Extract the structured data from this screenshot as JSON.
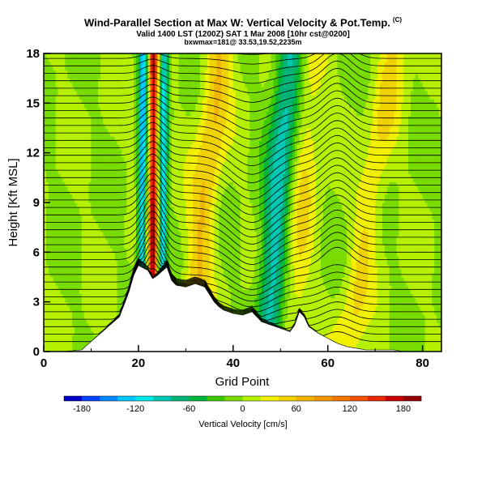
{
  "header": {
    "title": "Wind-Parallel Section at Max W: Vertical Velocity & Pot.Temp.",
    "title_tag": "(C)",
    "subtitle": "Valid 1400 LST (1200Z) SAT 1 Mar 2008 [10hr cst@0200]",
    "subtitle2": "bxwmax=181@ 33.53,19.52,2235m"
  },
  "chart_data": {
    "type": "heatmap",
    "x": {
      "label": "Grid Point",
      "lim": [
        0,
        84
      ],
      "ticks": [
        0,
        20,
        40,
        60,
        80
      ],
      "tick_labels": [
        "0",
        "20",
        "40",
        "60",
        "80"
      ]
    },
    "y": {
      "label": "Height [Kft MSL]",
      "lim": [
        0,
        18
      ],
      "ticks": [
        0,
        3,
        6,
        9,
        12,
        15,
        18
      ],
      "tick_labels": [
        "0",
        "3",
        "6",
        "9",
        "12",
        "15",
        "18"
      ]
    },
    "colorbar": {
      "label": "Vertical Velocity [cm/s]",
      "min": -200,
      "max": 200,
      "step": 20,
      "tick_values": [
        -180,
        -120,
        -60,
        0,
        60,
        120,
        180
      ],
      "tick_labels": [
        "-180",
        "-120",
        "-60",
        "0",
        "60",
        "120",
        "180"
      ],
      "colors": [
        "#0000c8",
        "#0044ff",
        "#0088ff",
        "#00c8ff",
        "#00e8e8",
        "#00c8b4",
        "#00b478",
        "#00b43c",
        "#3cc800",
        "#78dc00",
        "#b4f000",
        "#f0f000",
        "#f0d200",
        "#f0b400",
        "#f09600",
        "#f07800",
        "#f05000",
        "#e62800",
        "#c80000",
        "#960000"
      ]
    },
    "terrain_profile": {
      "grid_points": [
        0,
        4,
        8,
        10,
        12,
        14,
        16,
        18,
        19,
        20,
        22,
        23,
        24,
        26,
        27,
        28,
        30,
        32,
        34,
        36,
        37,
        38,
        40,
        42,
        44,
        46,
        48,
        50,
        52,
        53,
        54,
        55,
        56,
        58,
        60,
        62,
        64,
        66,
        68,
        70,
        72,
        74,
        76,
        78,
        80,
        82,
        84
      ],
      "height_kft": [
        0,
        0,
        0.1,
        0.6,
        1.1,
        1.6,
        2.1,
        3.6,
        4.6,
        5.2,
        4.9,
        4.4,
        4.6,
        5.1,
        4.3,
        4.0,
        3.9,
        4.1,
        3.9,
        3.0,
        2.7,
        2.5,
        2.3,
        2.2,
        2.4,
        1.8,
        1.6,
        1.4,
        1.2,
        1.6,
        2.4,
        2.1,
        1.5,
        1.1,
        0.8,
        0.5,
        0.3,
        0.2,
        0.1,
        0.1,
        0.1,
        0.1,
        0,
        0,
        0,
        0,
        0
      ]
    },
    "vertical_velocity_features_cm_s": [
      {
        "kind": "updraft",
        "peak": 181,
        "x_bottom": 23,
        "x_top": 23.2
      },
      {
        "kind": "downdraft",
        "peak": -130,
        "x_bottom": 20.5,
        "x_top": 21
      },
      {
        "kind": "downdraft",
        "peak": -110,
        "x_bottom": 25,
        "x_top": 25.5
      },
      {
        "kind": "downdraft",
        "peak": -90,
        "x_bottom": 47,
        "x_top": 52
      },
      {
        "kind": "updraft",
        "peak": 60,
        "x_bottom": 31,
        "x_top": 37
      },
      {
        "kind": "updraft",
        "peak": 40,
        "x_bottom": 52,
        "x_top": 57
      },
      {
        "kind": "updraft",
        "peak": 40,
        "x_bottom": 64,
        "x_top": 74
      }
    ]
  }
}
